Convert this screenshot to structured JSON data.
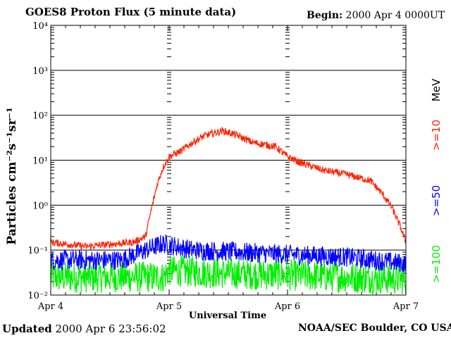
{
  "header": {
    "title": "GOES8 Proton Flux (5 minute data)",
    "begin_label": "Begin:",
    "begin_value": "2000 Apr 4 0000UT"
  },
  "footer": {
    "updated_label": "Updated",
    "updated_value": "2000 Apr  6 23:56:02",
    "source": "NOAA/SEC Boulder, CO USA"
  },
  "colors": {
    "ge10": "#ff2200",
    "ge50": "#0000ff",
    "ge100": "#00ee00",
    "grid": "#000000"
  },
  "chart_data": {
    "type": "line",
    "title": "GOES8 Proton Flux (5 minute data)",
    "xlabel": "Universal Time",
    "ylabel": "Particles cm⁻²s⁻¹sr⁻¹",
    "y_scale": "log",
    "ylim_exponent": [
      -2,
      4
    ],
    "y_tick_labels": [
      "10⁻²",
      "10⁻¹",
      "10⁰",
      "10¹",
      "10²",
      "10³",
      "10⁴"
    ],
    "x_ticks": [
      "Apr 4",
      "Apr 5",
      "Apr 6",
      "Apr 7"
    ],
    "xlim_days": [
      0,
      3
    ],
    "legend": [
      {
        "text": ">=10",
        "color": "#ff2200"
      },
      {
        "text": ">=50",
        "color": "#0000ff"
      },
      {
        "text": ">=100",
        "color": "#00ee00"
      },
      {
        "text": "MeV",
        "color": "#000000"
      }
    ],
    "series": [
      {
        "name": ">=10 MeV",
        "color": "#ff2200",
        "noise_log": 0.08,
        "x_days": [
          0,
          0.3,
          0.7,
          0.8,
          0.85,
          0.9,
          0.95,
          1.0,
          1.1,
          1.2,
          1.3,
          1.45,
          1.55,
          1.7,
          1.9,
          2.0,
          2.1,
          2.3,
          2.5,
          2.7,
          2.8,
          2.88,
          2.95,
          3.0
        ],
        "values": [
          0.15,
          0.12,
          0.15,
          0.2,
          0.8,
          3.0,
          7.0,
          12,
          16,
          25,
          35,
          45,
          38,
          25,
          20,
          12,
          9,
          6,
          4.8,
          3.5,
          1.8,
          0.9,
          0.35,
          0.15
        ]
      },
      {
        "name": ">=50 MeV",
        "color": "#0000ff",
        "noise_log": 0.22,
        "x_days": [
          0,
          0.6,
          0.8,
          0.95,
          1.2,
          1.6,
          2.0,
          2.5,
          3.0
        ],
        "values": [
          0.06,
          0.06,
          0.1,
          0.14,
          0.1,
          0.09,
          0.08,
          0.07,
          0.05
        ]
      },
      {
        "name": ">=100 MeV",
        "color": "#00ee00",
        "noise_log": 0.35,
        "x_days": [
          0,
          0.95,
          1.0,
          1.5,
          2.0,
          2.5,
          3.0
        ],
        "values": [
          0.025,
          0.025,
          0.035,
          0.03,
          0.028,
          0.025,
          0.022
        ]
      }
    ]
  }
}
